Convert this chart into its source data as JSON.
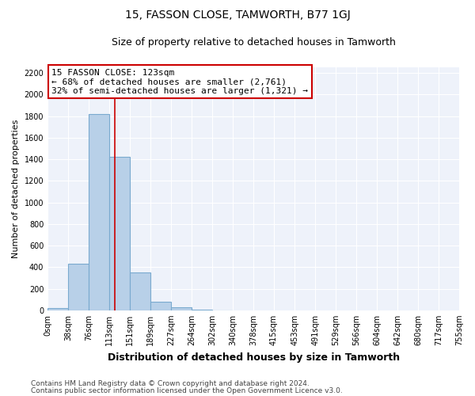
{
  "title": "15, FASSON CLOSE, TAMWORTH, B77 1GJ",
  "subtitle": "Size of property relative to detached houses in Tamworth",
  "xlabel": "Distribution of detached houses by size in Tamworth",
  "ylabel": "Number of detached properties",
  "bar_edges": [
    0,
    38,
    76,
    113,
    151,
    189,
    227,
    264,
    302,
    340,
    378,
    415,
    453,
    491,
    529,
    566,
    604,
    642,
    680,
    717,
    755
  ],
  "bar_values": [
    20,
    430,
    1820,
    1420,
    350,
    80,
    25,
    5,
    2,
    0,
    0,
    0,
    0,
    0,
    0,
    0,
    0,
    0,
    0,
    0
  ],
  "bar_color": "#b8d0e8",
  "bar_edge_color": "#7aaacf",
  "property_line_x": 123,
  "property_line_color": "#cc0000",
  "ylim": [
    0,
    2250
  ],
  "xlim": [
    0,
    755
  ],
  "annotation_text": "15 FASSON CLOSE: 123sqm\n← 68% of detached houses are smaller (2,761)\n32% of semi-detached houses are larger (1,321) →",
  "footer_line1": "Contains HM Land Registry data © Crown copyright and database right 2024.",
  "footer_line2": "Contains public sector information licensed under the Open Government Licence v3.0.",
  "title_fontsize": 10,
  "subtitle_fontsize": 9,
  "xlabel_fontsize": 9,
  "ylabel_fontsize": 8,
  "tick_fontsize": 7,
  "annotation_fontsize": 8,
  "footer_fontsize": 6.5,
  "background_color": "#ffffff",
  "plot_bg_color": "#eef2fa",
  "grid_color": "#ffffff",
  "yticks": [
    0,
    200,
    400,
    600,
    800,
    1000,
    1200,
    1400,
    1600,
    1800,
    2000,
    2200
  ]
}
